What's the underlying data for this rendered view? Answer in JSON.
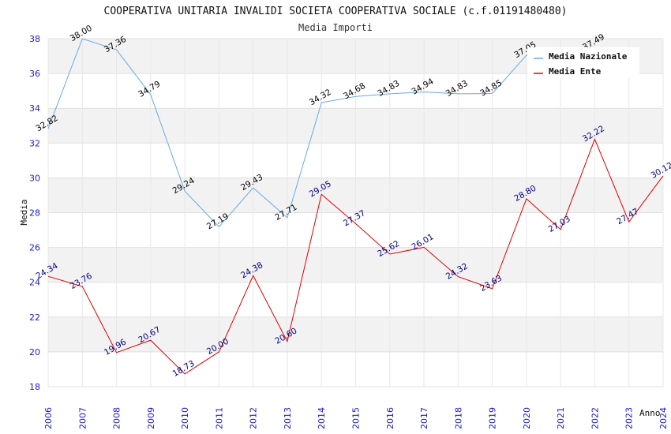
{
  "chart_data": {
    "type": "line",
    "title": "COOPERATIVA UNITARIA INVALIDI SOCIETA COOPERATIVA SOCIALE (c.f.01191480480)",
    "subtitle": "Media Importi",
    "xlabel": "Anno",
    "ylabel": "Media",
    "ylim": [
      18,
      38
    ],
    "yticks": [
      "18",
      "20",
      "22",
      "24",
      "26",
      "28",
      "30",
      "32",
      "34",
      "36",
      "38"
    ],
    "categories": [
      "2006",
      "2007",
      "2008",
      "2009",
      "2010",
      "2011",
      "2012",
      "2013",
      "2014",
      "2015",
      "2016",
      "2017",
      "2018",
      "2019",
      "2020",
      "2021",
      "2022",
      "2023",
      "2024"
    ],
    "legend_position": "top-right",
    "series": [
      {
        "name": "Media Nazionale",
        "color": "#6aaae4",
        "label_color": "#000000",
        "values": [
          32.82,
          38.0,
          37.36,
          34.79,
          29.24,
          27.19,
          29.43,
          27.71,
          34.32,
          34.68,
          34.83,
          34.94,
          34.83,
          34.85,
          37.05,
          36.44,
          37.49,
          null,
          null
        ],
        "labels": [
          "32.82",
          "38.00",
          "37.36",
          "34.79",
          "29.24",
          "27.19",
          "29.43",
          "27.71",
          "34.32",
          "34.68",
          "34.83",
          "34.94",
          "34.83",
          "34.85",
          "37.05",
          "",
          "37.49",
          "",
          ""
        ]
      },
      {
        "name": "Media Ente",
        "color": "#dd0000",
        "label_color": "#000080",
        "values": [
          24.34,
          23.76,
          19.96,
          20.67,
          18.73,
          20.0,
          24.38,
          20.6,
          29.05,
          27.37,
          25.62,
          26.01,
          24.32,
          23.63,
          28.8,
          27.03,
          32.22,
          27.47,
          30.12
        ],
        "labels": [
          "24.34",
          "23.76",
          "19.96",
          "20.67",
          "18.73",
          "20.00",
          "24.38",
          "20.60",
          "29.05",
          "27.37",
          "25.62",
          "26.01",
          "24.32",
          "23.63",
          "28.80",
          "27.03",
          "32.22",
          "27.47",
          "30.12"
        ]
      }
    ]
  }
}
